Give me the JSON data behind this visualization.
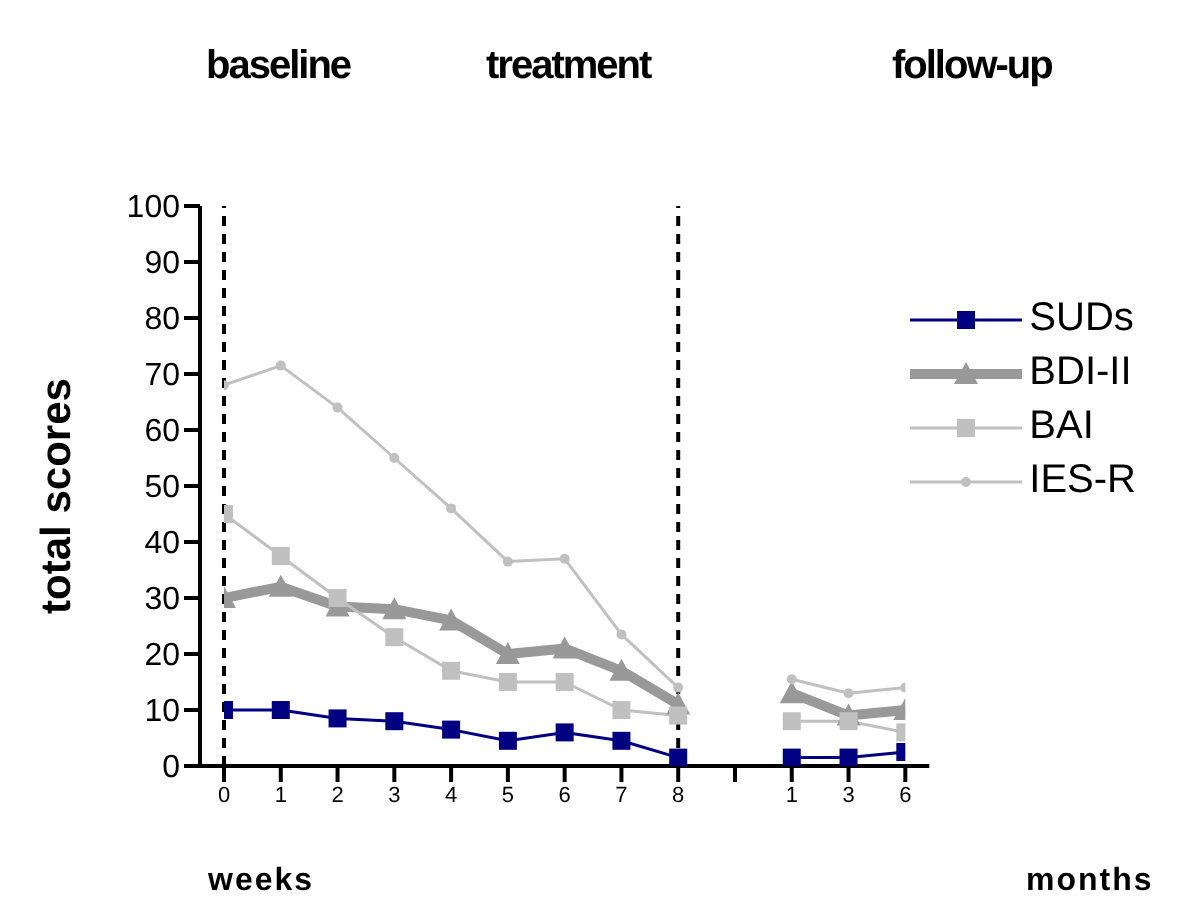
{
  "chart_data": {
    "type": "line",
    "ylabel": "total scores",
    "xlabel": "weeks",
    "annotations": [
      "baseline",
      "treatment",
      "follow-up",
      "months"
    ],
    "categories": [
      "0",
      "1",
      "2",
      "3",
      "4",
      "5",
      "6",
      "7",
      "8",
      null,
      "1",
      "3",
      "6"
    ],
    "ylim": [
      0,
      100
    ],
    "yticks": [
      0,
      10,
      20,
      30,
      40,
      50,
      60,
      70,
      80,
      90,
      100
    ],
    "grid": false,
    "legend": "right",
    "ref_lines": [
      {
        "axis": "x",
        "value": "0",
        "line_style": "dashed",
        "color": "#000000"
      },
      {
        "axis": "x",
        "value": "8",
        "line_style": "dashed",
        "color": "#000000"
      }
    ],
    "series": [
      {
        "name": "SUDs",
        "color": "#000080",
        "marker": "square",
        "values": [
          10,
          10,
          8.5,
          8,
          6.5,
          4.5,
          6,
          4.5,
          1.5,
          null,
          1.5,
          1.5,
          2.5
        ]
      },
      {
        "name": "BDI-II",
        "color": "#999999",
        "marker": "triangle",
        "values": [
          30,
          32,
          28.5,
          28,
          26,
          20,
          21,
          17,
          11,
          null,
          13,
          9,
          10
        ]
      },
      {
        "name": "BAI",
        "color": "#c0c0c0",
        "marker": "square",
        "values": [
          45,
          37.5,
          30,
          23,
          17,
          15,
          15,
          10,
          9,
          null,
          8,
          8,
          6
        ]
      },
      {
        "name": "IES-R",
        "color": "#c0c0c0",
        "marker": "circle",
        "values": [
          68,
          71.5,
          64,
          55,
          46,
          36.5,
          37,
          23.5,
          14,
          null,
          15.5,
          13,
          14
        ]
      }
    ]
  }
}
